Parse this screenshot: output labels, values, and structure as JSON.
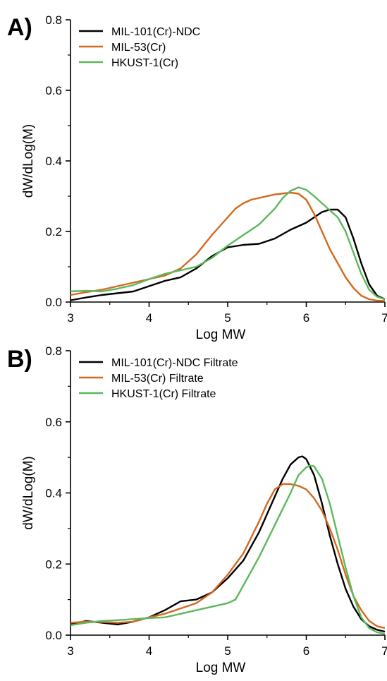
{
  "chart_data": [
    {
      "type": "line",
      "panel_label": "A)",
      "xlabel": "Log MW",
      "ylabel": "dW/dLog(M)",
      "xlim": [
        3,
        7
      ],
      "ylim": [
        0,
        0.8
      ],
      "x_ticks": [
        "3",
        "4",
        "5",
        "6",
        "7"
      ],
      "y_ticks": [
        "0.0",
        "0.2",
        "0.4",
        "0.6",
        "0.8"
      ],
      "legend_position": "top-left",
      "series": [
        {
          "name": "MIL-101(Cr)-NDC",
          "color": "#000000",
          "x": [
            3.0,
            3.2,
            3.4,
            3.6,
            3.8,
            4.0,
            4.2,
            4.4,
            4.6,
            4.8,
            5.0,
            5.2,
            5.4,
            5.6,
            5.8,
            6.0,
            6.1,
            6.2,
            6.3,
            6.4,
            6.5,
            6.6,
            6.7,
            6.8,
            6.9,
            7.0
          ],
          "y": [
            0.005,
            0.013,
            0.02,
            0.025,
            0.03,
            0.045,
            0.06,
            0.07,
            0.095,
            0.13,
            0.155,
            0.162,
            0.165,
            0.18,
            0.205,
            0.225,
            0.24,
            0.255,
            0.262,
            0.262,
            0.24,
            0.18,
            0.11,
            0.05,
            0.018,
            0.008
          ]
        },
        {
          "name": "MIL-53(Cr)",
          "color": "#d2691e",
          "x": [
            3.0,
            3.2,
            3.4,
            3.6,
            3.8,
            4.0,
            4.2,
            4.4,
            4.6,
            4.8,
            5.0,
            5.1,
            5.2,
            5.3,
            5.4,
            5.6,
            5.8,
            5.9,
            6.0,
            6.1,
            6.2,
            6.3,
            6.4,
            6.5,
            6.6,
            6.7,
            6.8,
            6.9,
            7.0
          ],
          "y": [
            0.02,
            0.028,
            0.035,
            0.045,
            0.055,
            0.065,
            0.075,
            0.095,
            0.135,
            0.19,
            0.24,
            0.265,
            0.28,
            0.29,
            0.295,
            0.305,
            0.31,
            0.307,
            0.29,
            0.25,
            0.2,
            0.15,
            0.11,
            0.07,
            0.04,
            0.018,
            0.008,
            0.004,
            0.003
          ]
        },
        {
          "name": "HKUST-1(Cr)",
          "color": "#5cb85c",
          "x": [
            3.0,
            3.2,
            3.4,
            3.6,
            3.8,
            4.0,
            4.2,
            4.4,
            4.6,
            4.8,
            5.0,
            5.2,
            5.4,
            5.6,
            5.7,
            5.8,
            5.9,
            6.0,
            6.1,
            6.2,
            6.3,
            6.4,
            6.5,
            6.6,
            6.7,
            6.8,
            6.9,
            7.0
          ],
          "y": [
            0.03,
            0.032,
            0.03,
            0.038,
            0.048,
            0.065,
            0.08,
            0.09,
            0.1,
            0.125,
            0.16,
            0.19,
            0.22,
            0.265,
            0.295,
            0.315,
            0.325,
            0.318,
            0.3,
            0.28,
            0.26,
            0.24,
            0.2,
            0.14,
            0.08,
            0.035,
            0.015,
            0.008
          ]
        }
      ]
    },
    {
      "type": "line",
      "panel_label": "B)",
      "xlabel": "Log MW",
      "ylabel": "dW/dLog(M)",
      "xlim": [
        3,
        7
      ],
      "ylim": [
        0,
        0.8
      ],
      "x_ticks": [
        "3",
        "4",
        "5",
        "6",
        "7"
      ],
      "y_ticks": [
        "0.0",
        "0.2",
        "0.4",
        "0.6",
        "0.8"
      ],
      "legend_position": "top-left",
      "series": [
        {
          "name": "MIL-101(Cr)-NDC Filtrate",
          "color": "#000000",
          "x": [
            3.0,
            3.2,
            3.4,
            3.6,
            3.8,
            4.0,
            4.2,
            4.4,
            4.6,
            4.8,
            5.0,
            5.2,
            5.4,
            5.6,
            5.7,
            5.8,
            5.9,
            5.95,
            6.0,
            6.1,
            6.2,
            6.3,
            6.4,
            6.5,
            6.6,
            6.7,
            6.8,
            6.9,
            7.0
          ],
          "y": [
            0.03,
            0.04,
            0.035,
            0.03,
            0.038,
            0.05,
            0.07,
            0.095,
            0.1,
            0.12,
            0.16,
            0.21,
            0.29,
            0.39,
            0.44,
            0.48,
            0.5,
            0.503,
            0.495,
            0.45,
            0.37,
            0.28,
            0.2,
            0.13,
            0.08,
            0.045,
            0.025,
            0.015,
            0.01
          ]
        },
        {
          "name": "MIL-53(Cr) Filtrate",
          "color": "#d2691e",
          "x": [
            3.0,
            3.2,
            3.4,
            3.6,
            3.8,
            4.0,
            4.2,
            4.4,
            4.6,
            4.8,
            5.0,
            5.2,
            5.4,
            5.5,
            5.6,
            5.7,
            5.8,
            5.9,
            6.0,
            6.1,
            6.2,
            6.3,
            6.4,
            6.5,
            6.6,
            6.7,
            6.8,
            6.9,
            7.0
          ],
          "y": [
            0.035,
            0.038,
            0.037,
            0.035,
            0.038,
            0.05,
            0.06,
            0.075,
            0.09,
            0.12,
            0.17,
            0.23,
            0.32,
            0.37,
            0.41,
            0.425,
            0.425,
            0.42,
            0.41,
            0.385,
            0.35,
            0.3,
            0.24,
            0.17,
            0.11,
            0.07,
            0.04,
            0.025,
            0.02
          ]
        },
        {
          "name": "HKUST-1(Cr) Filtrate",
          "color": "#5cb85c",
          "x": [
            3.0,
            3.2,
            3.4,
            3.6,
            3.8,
            4.0,
            4.2,
            4.4,
            4.6,
            4.8,
            5.0,
            5.1,
            5.2,
            5.4,
            5.6,
            5.8,
            5.9,
            6.0,
            6.05,
            6.1,
            6.2,
            6.3,
            6.4,
            6.5,
            6.6,
            6.7,
            6.8,
            6.9,
            7.0
          ],
          "y": [
            0.028,
            0.035,
            0.04,
            0.042,
            0.045,
            0.048,
            0.05,
            0.06,
            0.07,
            0.08,
            0.09,
            0.1,
            0.14,
            0.22,
            0.31,
            0.4,
            0.45,
            0.472,
            0.477,
            0.475,
            0.44,
            0.37,
            0.28,
            0.19,
            0.11,
            0.05,
            0.02,
            0.008,
            0.004
          ]
        }
      ]
    }
  ]
}
